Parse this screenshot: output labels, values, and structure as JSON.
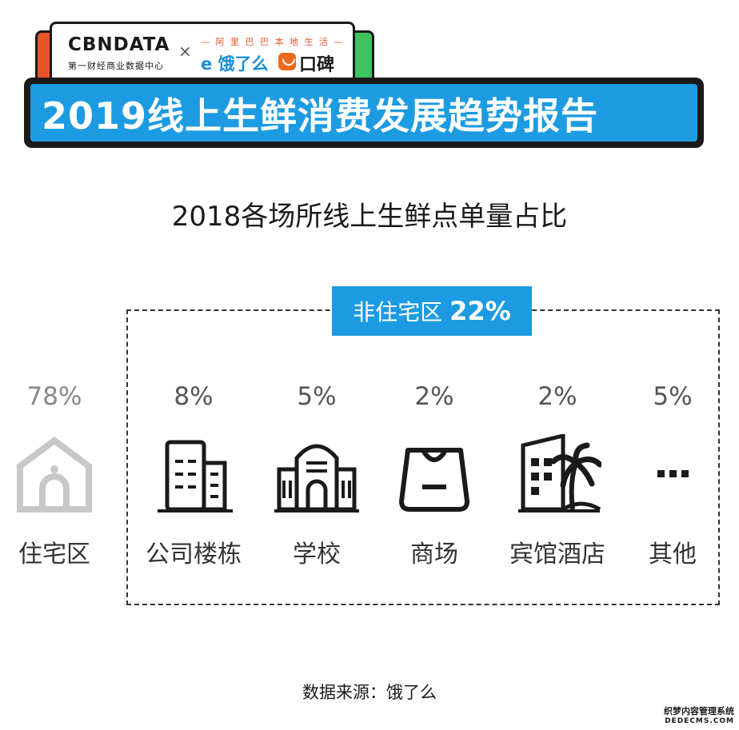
{
  "header": {
    "cbn_logo": "CBNDATA",
    "cbn_subtitle": "第一财经商业数据中心",
    "times": "×",
    "alibaba_line": "— 阿 里 巴 巴 本 地 生 活 —",
    "eleme": "饿了么",
    "koubei": "口碑",
    "report_title": "2019线上生鲜消费发展趋势报告"
  },
  "colors": {
    "accent_blue": "#1d9be2",
    "dark": "#1a1a1a",
    "residential_gray": "#c8c8c8"
  },
  "chart_data": {
    "type": "icon-array",
    "title": "2018各场所线上生鲜点单量占比",
    "unit": "%",
    "categories": [
      "住宅区",
      "公司楼栋",
      "学校",
      "商场",
      "宾馆酒店",
      "其他"
    ],
    "values": [
      78,
      8,
      5,
      2,
      2,
      5
    ],
    "value_labels": [
      "78%",
      "8%",
      "5%",
      "2%",
      "2%",
      "5%"
    ],
    "icons": [
      "house-icon",
      "office-building-icon",
      "school-icon",
      "shopping-bag-icon",
      "hotel-palm-icon",
      "ellipsis-icon"
    ],
    "group": {
      "label": "非住宅区",
      "value": 22,
      "value_label": "22%",
      "members": [
        "公司楼栋",
        "学校",
        "商场",
        "宾馆酒店",
        "其他"
      ]
    }
  },
  "source": "数据来源：饿了么",
  "watermark": {
    "line1": "织梦内容管理系统",
    "line2": "DEDECMS.COM"
  }
}
